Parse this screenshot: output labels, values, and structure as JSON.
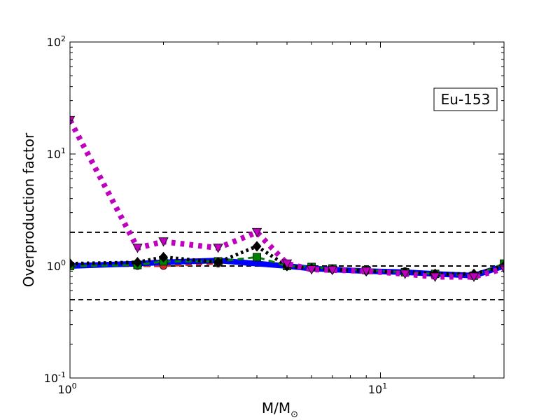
{
  "chart_data": {
    "type": "line",
    "xscale": "log",
    "yscale": "log",
    "xlim": [
      1,
      25
    ],
    "ylim": [
      0.1,
      100
    ],
    "xticks": [
      {
        "value": 1,
        "base": "10",
        "exp": "0"
      },
      {
        "value": 10,
        "base": "10",
        "exp": "1"
      }
    ],
    "yticks": [
      {
        "value": 0.1,
        "base": "10",
        "exp": "-1"
      },
      {
        "value": 1,
        "base": "10",
        "exp": "0"
      },
      {
        "value": 10,
        "base": "10",
        "exp": "1"
      },
      {
        "value": 100,
        "base": "10",
        "exp": "2"
      }
    ],
    "xlabel": "M/M",
    "xlabel_sub": "⊙",
    "ylabel": "Overproduction factor",
    "annotation": "Eu-153",
    "annotation_position": "top-right",
    "grid": false,
    "reference_lines": [
      {
        "y": 2.0,
        "style": "dashed",
        "color": "#000000"
      },
      {
        "y": 1.0,
        "style": "dashed",
        "color": "#000000"
      },
      {
        "y": 0.5,
        "style": "dashed",
        "color": "#000000"
      }
    ],
    "x": [
      1.0,
      1.65,
      2.0,
      3.0,
      4.0,
      5.0,
      6.0,
      7.0,
      9.0,
      12.0,
      15.0,
      20.0,
      25.0
    ],
    "series": [
      {
        "color": "#d62728",
        "dash": "dashed",
        "width": 3,
        "marker": "circle",
        "values": [
          1.0,
          1.0,
          1.0,
          1.05,
          1.1,
          1.0,
          0.95,
          0.95,
          0.92,
          0.9,
          0.85,
          0.82,
          1.0
        ]
      },
      {
        "color": "#0000ff",
        "dash": "solid",
        "width": 8,
        "marker": "none",
        "values": [
          1.0,
          1.05,
          1.08,
          1.12,
          1.05,
          1.0,
          0.95,
          0.93,
          0.9,
          0.88,
          0.85,
          0.82,
          1.0
        ]
      },
      {
        "color": "#008000",
        "dash": "dashed",
        "width": 3,
        "marker": "square",
        "values": [
          1.0,
          1.02,
          1.1,
          1.1,
          1.2,
          1.0,
          0.98,
          0.95,
          0.92,
          0.88,
          0.85,
          0.82,
          1.05
        ]
      },
      {
        "color": "#000000",
        "dash": "dotted",
        "width": 5,
        "marker": "diamond",
        "values": [
          1.05,
          1.08,
          1.2,
          1.08,
          1.5,
          1.0,
          0.95,
          0.93,
          0.9,
          0.88,
          0.85,
          0.85,
          1.0
        ]
      },
      {
        "color": "#bf00bf",
        "dash": "dotted",
        "width": 8,
        "marker": "triangle-down",
        "values": [
          20.0,
          1.45,
          1.65,
          1.45,
          2.0,
          1.05,
          0.93,
          0.92,
          0.9,
          0.85,
          0.8,
          0.8,
          0.95
        ]
      }
    ]
  }
}
